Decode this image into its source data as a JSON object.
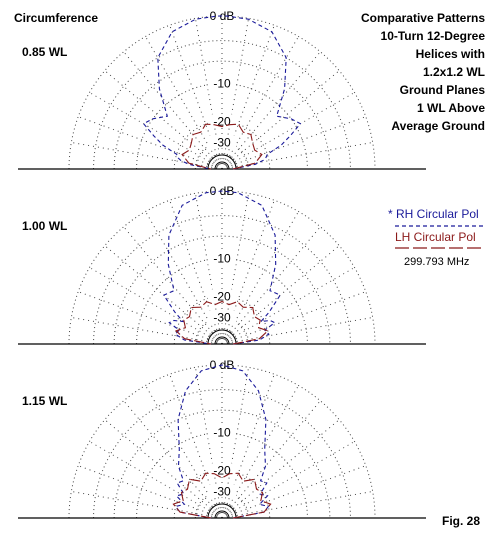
{
  "header": {
    "left_label": "Circumference",
    "title_lines": [
      "Comparative Patterns",
      "10-Turn 12-Degree",
      "Helices with",
      "1.2x1.2 WL",
      "Ground Planes",
      "1 WL Above",
      "Average Ground"
    ]
  },
  "legend": {
    "rh_marker": "*",
    "rh_label": "RH Circular Pol",
    "lh_label": "LH Circular Pol",
    "frequency": "299.793 MHz"
  },
  "figure_label": "Fig. 28",
  "colors": {
    "rh": "#1a1a9a",
    "lh": "#8b1a1a",
    "grid": "#444444"
  },
  "chart_data": [
    {
      "type": "polar",
      "panel_label": "0.85 WL",
      "rings_db": [
        0,
        -10,
        -20,
        -30
      ],
      "ring_labels": [
        "0 dB",
        "-10",
        "-20",
        "-30"
      ],
      "series": [
        {
          "name": "RH Circular Pol",
          "theta_deg": [
            0,
            8,
            12,
            14,
            18,
            22,
            26,
            30,
            36,
            44,
            52,
            60,
            70,
            80,
            88,
            90,
            92,
            100,
            110,
            120,
            128,
            136,
            144,
            150,
            154,
            158,
            162,
            166,
            168,
            172,
            180
          ],
          "db": [
            -45,
            -26,
            -22,
            -21,
            -20,
            -15,
            -12,
            -9,
            -10,
            -12,
            -7,
            -3,
            -0.8,
            -0.1,
            0,
            0,
            0,
            -0.1,
            -0.8,
            -3,
            -7,
            -12,
            -10,
            -9,
            -12,
            -15,
            -20,
            -21,
            -22,
            -26,
            -45
          ]
        },
        {
          "name": "LH Circular Pol",
          "theta_deg": [
            0,
            10,
            20,
            30,
            40,
            50,
            60,
            70,
            80,
            90,
            100,
            110,
            120,
            130,
            140,
            150,
            160,
            170,
            180
          ],
          "db": [
            -45,
            -26,
            -22,
            -24,
            -23,
            -21,
            -22,
            -20,
            -21,
            -22,
            -21,
            -20,
            -22,
            -21,
            -23,
            -24,
            -22,
            -26,
            -45
          ]
        }
      ]
    },
    {
      "type": "polar",
      "panel_label": "1.00 WL",
      "rings_db": [
        0,
        -10,
        -20,
        -30
      ],
      "ring_labels": [
        "0 dB",
        "-10",
        "-20",
        "-30"
      ],
      "series": [
        {
          "name": "RH Circular Pol",
          "theta_deg": [
            0,
            6,
            12,
            18,
            22,
            26,
            30,
            34,
            40,
            48,
            56,
            64,
            74,
            84,
            90,
            96,
            106,
            116,
            124,
            132,
            140,
            146,
            150,
            154,
            158,
            162,
            168,
            174,
            180
          ],
          "db": [
            -45,
            -24,
            -20,
            -21,
            -17,
            -18,
            -21,
            -17,
            -12,
            -13,
            -8,
            -4,
            -1,
            -0.1,
            0,
            -0.1,
            -1,
            -4,
            -8,
            -13,
            -12,
            -17,
            -21,
            -18,
            -17,
            -21,
            -20,
            -24,
            -45
          ]
        },
        {
          "name": "LH Circular Pol",
          "theta_deg": [
            0,
            8,
            16,
            24,
            32,
            40,
            50,
            60,
            70,
            80,
            90,
            100,
            110,
            120,
            130,
            140,
            148,
            156,
            164,
            172,
            180
          ],
          "db": [
            -45,
            -24,
            -20,
            -23,
            -21,
            -22,
            -20,
            -22,
            -21,
            -23,
            -22,
            -23,
            -21,
            -22,
            -20,
            -22,
            -21,
            -23,
            -20,
            -24,
            -45
          ]
        }
      ]
    },
    {
      "type": "polar",
      "panel_label": "1.15 WL",
      "rings_db": [
        0,
        -10,
        -20,
        -30
      ],
      "ring_labels": [
        "0 dB",
        "-10",
        "-20",
        "-30"
      ],
      "series": [
        {
          "name": "RH Circular Pol",
          "theta_deg": [
            0,
            8,
            14,
            20,
            26,
            32,
            38,
            44,
            50,
            58,
            66,
            74,
            82,
            90,
            98,
            106,
            114,
            122,
            130,
            136,
            142,
            148,
            154,
            160,
            166,
            172,
            180
          ],
          "db": [
            -45,
            -22,
            -20,
            -23,
            -19,
            -21,
            -17,
            -18,
            -14,
            -11,
            -6,
            -2.5,
            -0.5,
            0,
            -0.5,
            -2.5,
            -6,
            -11,
            -14,
            -18,
            -17,
            -21,
            -19,
            -23,
            -20,
            -22,
            -45
          ]
        },
        {
          "name": "LH Circular Pol",
          "theta_deg": [
            0,
            8,
            16,
            24,
            32,
            40,
            50,
            60,
            70,
            80,
            90,
            100,
            110,
            120,
            130,
            140,
            148,
            156,
            164,
            172,
            180
          ],
          "db": [
            -45,
            -22,
            -19,
            -22,
            -20,
            -21,
            -19,
            -22,
            -20,
            -21,
            -23,
            -21,
            -20,
            -22,
            -19,
            -21,
            -20,
            -22,
            -19,
            -22,
            -45
          ]
        }
      ]
    }
  ]
}
